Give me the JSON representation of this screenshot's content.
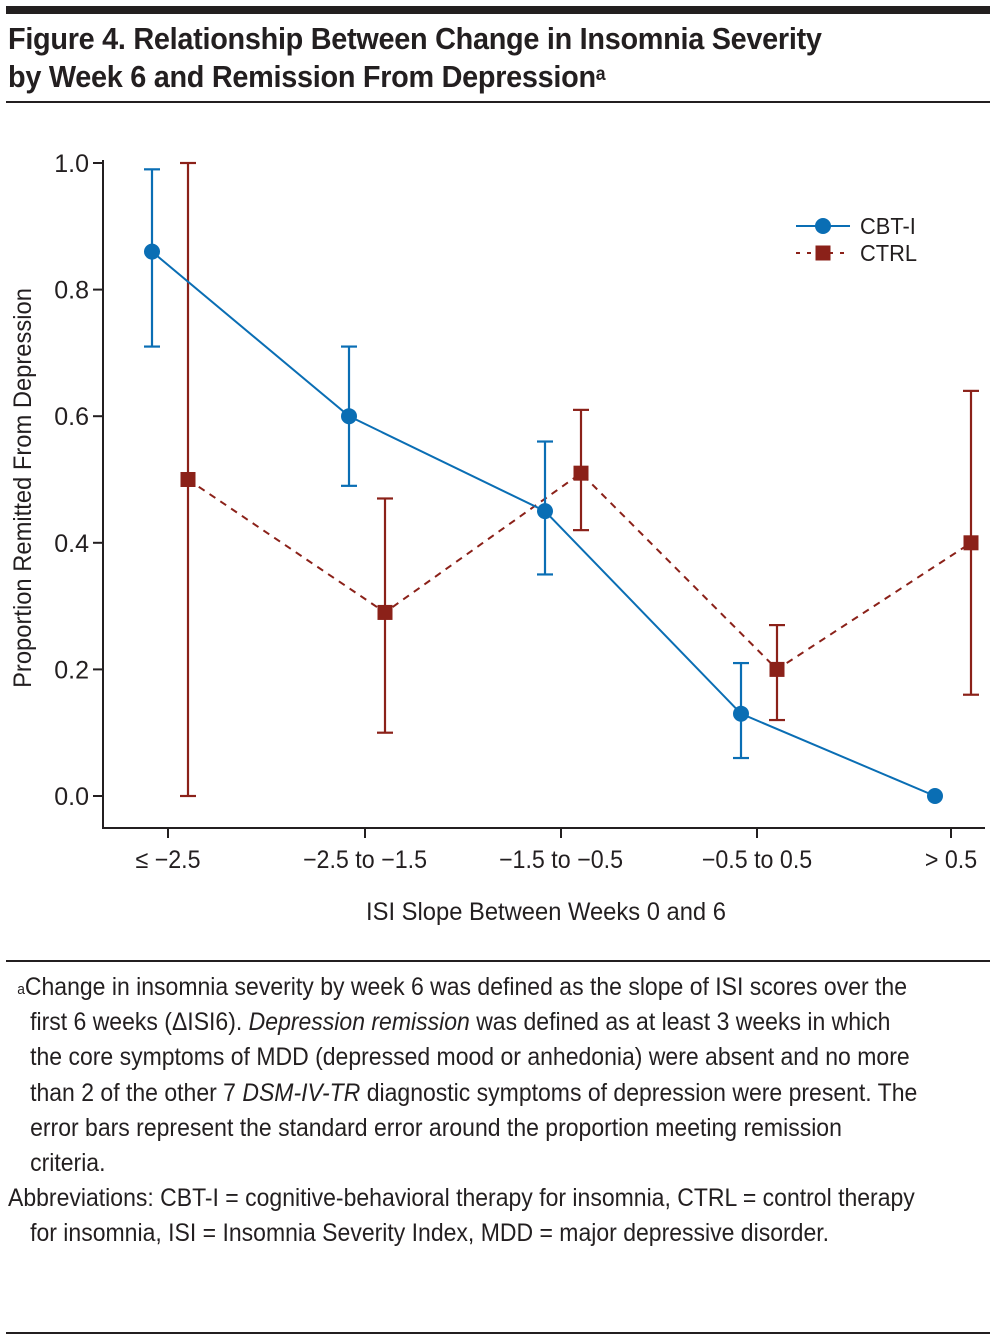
{
  "figure": {
    "title_line1": "Figure 4. Relationship Between Change in Insomnia Severity",
    "title_line2": "by Week 6 and Remission From Depression",
    "title_superscript": "a"
  },
  "chart_data": {
    "type": "line",
    "title": "Relationship Between Change in Insomnia Severity by Week 6 and Remission From Depression",
    "xlabel": "ISI Slope Between Weeks 0 and 6",
    "ylabel": "Proportion Remitted From Depression",
    "categories": [
      "≤ −2.5",
      "−2.5 to −1.5",
      "−1.5 to −0.5",
      "−0.5 to 0.5",
      "> 0.5"
    ],
    "ylim": [
      -0.05,
      1.0
    ],
    "yticks": [
      0.0,
      0.2,
      0.4,
      0.6,
      0.8,
      1.0
    ],
    "ytick_labels": [
      "0.0",
      "0.2",
      "0.4",
      "0.6",
      "0.8",
      "1.0"
    ],
    "grid": false,
    "legend_position": "top-right",
    "series": [
      {
        "name": "CBT-I",
        "color": "#0a6eb4",
        "line_style": "solid",
        "marker": "circle",
        "values": [
          0.86,
          0.6,
          0.45,
          0.13,
          0.0
        ],
        "error_low": [
          0.71,
          0.49,
          0.35,
          0.06,
          null
        ],
        "error_high": [
          0.99,
          0.71,
          0.56,
          0.21,
          null
        ]
      },
      {
        "name": "CTRL",
        "color": "#8b2119",
        "line_style": "dashed",
        "marker": "square",
        "values": [
          0.5,
          0.29,
          0.51,
          0.2,
          0.4
        ],
        "error_low": [
          0.0,
          0.1,
          0.42,
          0.12,
          0.16
        ],
        "error_high": [
          1.0,
          0.47,
          0.61,
          0.27,
          0.64
        ]
      }
    ]
  },
  "notes": {
    "footnote_marker": "a",
    "footnote_part1": "Change in insomnia severity by week 6 was defined as the slope of ISI scores over the first 6 weeks (ΔISI6). ",
    "footnote_italic1": "Depression remission",
    "footnote_part2": " was defined as at least 3 weeks in which the core symptoms of MDD (depressed mood or anhedonia) were absent and no more than 2 of the other 7 ",
    "footnote_italic2": "DSM-IV-TR",
    "footnote_part3": " diagnostic symptoms of depression were present. The error bars represent the standard error around the proportion meeting remission criteria.",
    "abbreviations": "Abbreviations: CBT-I = cognitive-behavioral therapy for insomnia, CTRL = control therapy for insomnia, ISI = Insomnia Severity Index, MDD = major depressive disorder."
  }
}
